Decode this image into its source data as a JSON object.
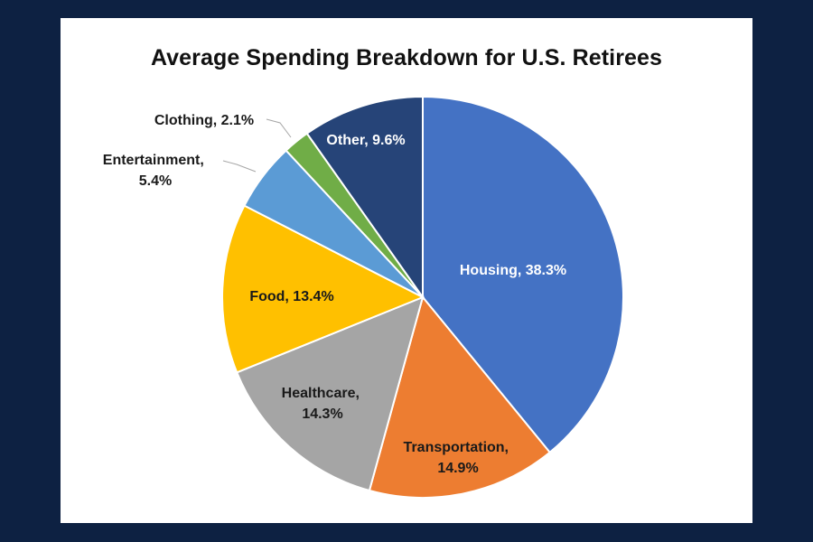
{
  "chart_data": {
    "type": "pie",
    "title": "Average Spending Breakdown for U.S. Retirees",
    "categories": [
      "Housing",
      "Transportation",
      "Healthcare",
      "Food",
      "Entertainment",
      "Clothing",
      "Other"
    ],
    "values": [
      38.3,
      14.9,
      14.3,
      13.4,
      5.4,
      2.1,
      9.6
    ],
    "unit": "%",
    "colors": [
      "#4472c4",
      "#ed7d31",
      "#a5a5a5",
      "#ffc000",
      "#5b9bd5",
      "#70ad47",
      "#264478"
    ],
    "start_angle": "12 o'clock, clockwise",
    "legend": "none (data labels on slices)",
    "labels": [
      {
        "category": "Housing",
        "line1": "Housing, 38.3%",
        "line2": ""
      },
      {
        "category": "Transportation",
        "line1": "Transportation,",
        "line2": "14.9%"
      },
      {
        "category": "Healthcare",
        "line1": "Healthcare,",
        "line2": "14.3%"
      },
      {
        "category": "Food",
        "line1": "Food, 13.4%",
        "line2": ""
      },
      {
        "category": "Entertainment",
        "line1": "Entertainment,",
        "line2": "5.4%"
      },
      {
        "category": "Clothing",
        "line1": "Clothing, 2.1%",
        "line2": ""
      },
      {
        "category": "Other",
        "line1": "Other, 9.6%",
        "line2": ""
      }
    ]
  },
  "page": {
    "background": "#0d2142",
    "panel_background": "#ffffff"
  }
}
